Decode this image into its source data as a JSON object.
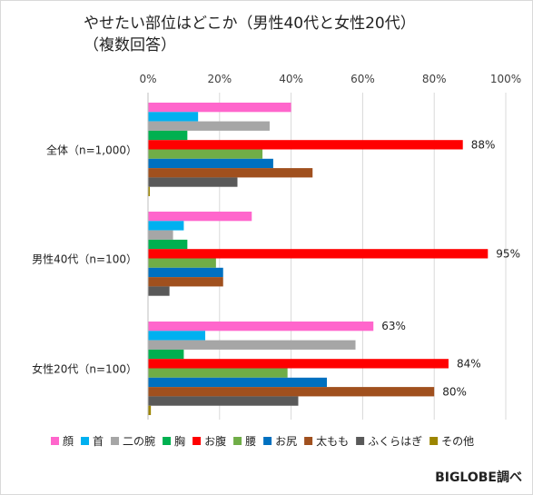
{
  "title": {
    "line1": "やせたい部位はどこか（男性40代と女性20代）",
    "line2": "（複数回答）"
  },
  "credit": "BIGLOBE調べ",
  "chart_data": {
    "type": "bar",
    "orientation": "horizontal",
    "xlim": [
      0,
      100
    ],
    "x_ticks": [
      "0%",
      "20%",
      "40%",
      "60%",
      "80%",
      "100%"
    ],
    "grid": true,
    "legend_position": "bottom",
    "categories": [
      "全体（n=1,000）",
      "男性40代（n=100）",
      "女性20代（n=100）"
    ],
    "series": [
      {
        "name": "顔",
        "color": "#ff66cc",
        "values": [
          40,
          29,
          63
        ]
      },
      {
        "name": "首",
        "color": "#00b0f0",
        "values": [
          14,
          10,
          16
        ]
      },
      {
        "name": "二の腕",
        "color": "#a6a6a6",
        "values": [
          34,
          7,
          58
        ]
      },
      {
        "name": "胸",
        "color": "#00b050",
        "values": [
          11,
          11,
          10
        ]
      },
      {
        "name": "お腹",
        "color": "#ff0000",
        "values": [
          88,
          95,
          84
        ]
      },
      {
        "name": "腰",
        "color": "#70ad47",
        "values": [
          32,
          19,
          39
        ]
      },
      {
        "name": "お尻",
        "color": "#0070c0",
        "values": [
          35,
          21,
          50
        ]
      },
      {
        "name": "太もも",
        "color": "#a0501e",
        "values": [
          46,
          21,
          80
        ]
      },
      {
        "name": "ふくらはぎ",
        "color": "#595959",
        "values": [
          25,
          6,
          42
        ]
      },
      {
        "name": "その他",
        "color": "#9c8500",
        "values": [
          0.5,
          0,
          0.8
        ]
      }
    ],
    "data_labels": [
      {
        "category": 0,
        "series": 4,
        "text": "88%"
      },
      {
        "category": 1,
        "series": 4,
        "text": "95%"
      },
      {
        "category": 2,
        "series": 0,
        "text": "63%"
      },
      {
        "category": 2,
        "series": 4,
        "text": "84%"
      },
      {
        "category": 2,
        "series": 7,
        "text": "80%"
      }
    ]
  }
}
